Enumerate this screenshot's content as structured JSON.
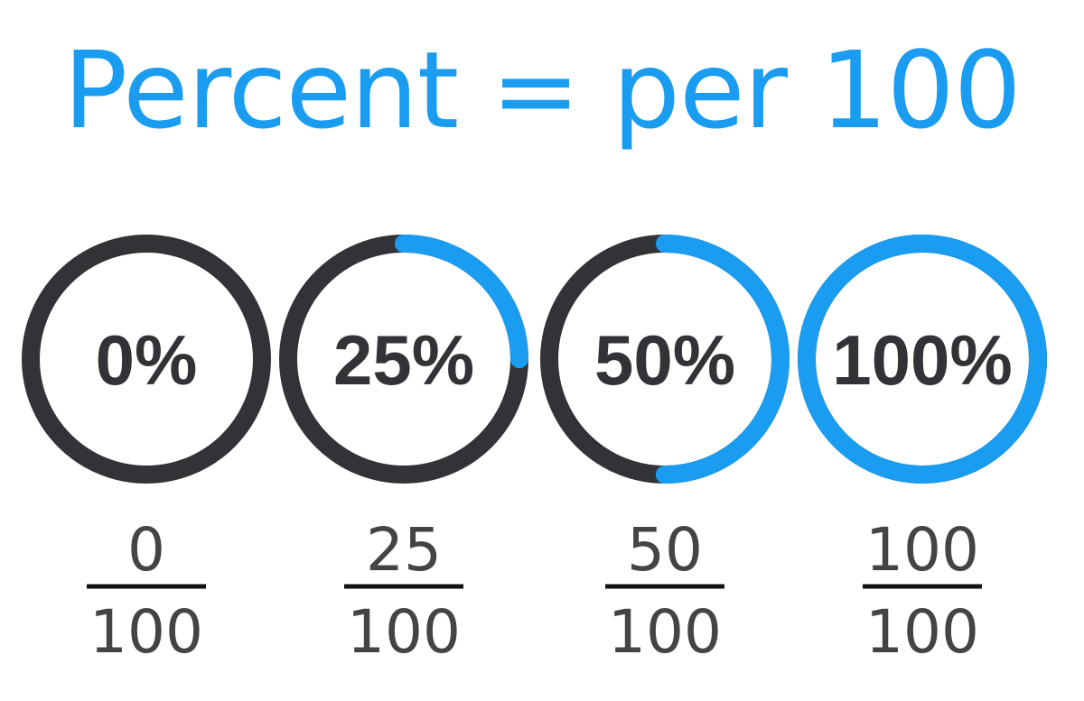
{
  "title": "Percent = per 100",
  "colors": {
    "accent": "#1a9cf0",
    "track": "#333337",
    "text": "#333337",
    "fraction_text": "#444444",
    "fraction_bar": "#111111"
  },
  "items": [
    {
      "label": "0%",
      "fill_percent": 0,
      "numerator": "0",
      "denominator": "100"
    },
    {
      "label": "25%",
      "fill_percent": 25,
      "numerator": "25",
      "denominator": "100"
    },
    {
      "label": "50%",
      "fill_percent": 50,
      "numerator": "50",
      "denominator": "100"
    },
    {
      "label": "100%",
      "fill_percent": 100,
      "numerator": "100",
      "denominator": "100"
    }
  ]
}
